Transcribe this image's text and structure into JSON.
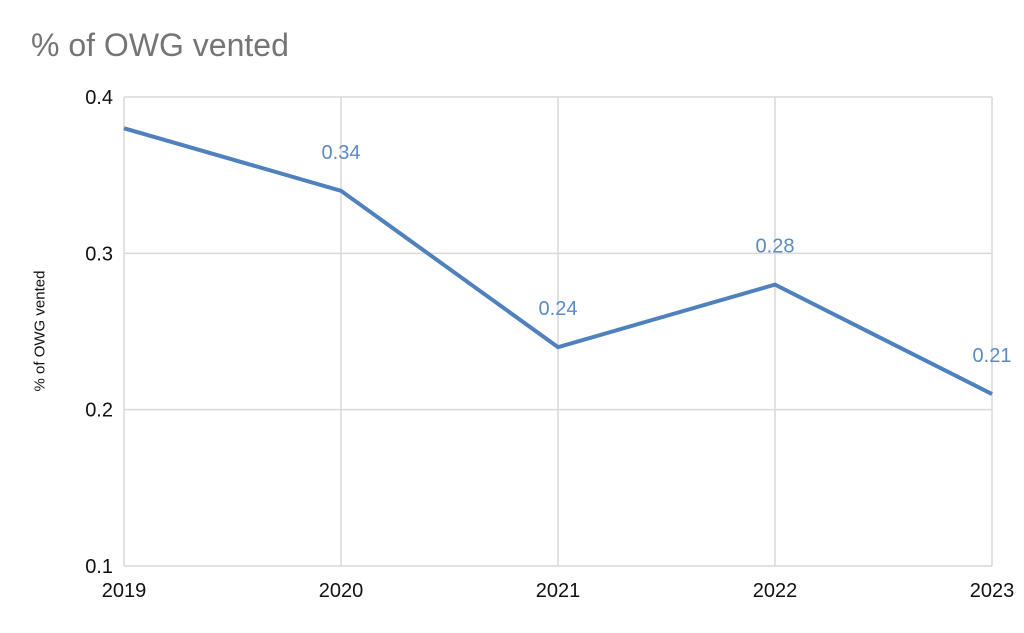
{
  "page": {
    "background_color": "#ffffff"
  },
  "chart_data": {
    "type": "line",
    "title": "% of OWG vented",
    "xlabel": "",
    "ylabel": "% of OWG vented",
    "categories": [
      "2019",
      "2020",
      "2021",
      "2022",
      "2023"
    ],
    "series": [
      {
        "name": "% of OWG vented",
        "values": [
          0.38,
          0.34,
          0.24,
          0.28,
          0.21
        ],
        "color": "#4f81bd",
        "line_width": 4
      }
    ],
    "data_labels": [
      null,
      "0.34",
      "0.24",
      "0.28",
      "0.21"
    ],
    "data_label_color": "#5b8ac6",
    "ylim": [
      0.1,
      0.4
    ],
    "yticks": [
      0.4,
      0.3,
      0.2,
      0.1
    ],
    "ytick_labels": [
      "0.4",
      "0.3",
      "0.2",
      "0.1"
    ],
    "xtick_labels": [
      "2019",
      "2020",
      "2021",
      "2022",
      "2023"
    ],
    "grid": true,
    "gridline_color": "#d9d9d9",
    "tick_label_color": "#111111",
    "title_color": "#757575",
    "legend_position": "none"
  }
}
